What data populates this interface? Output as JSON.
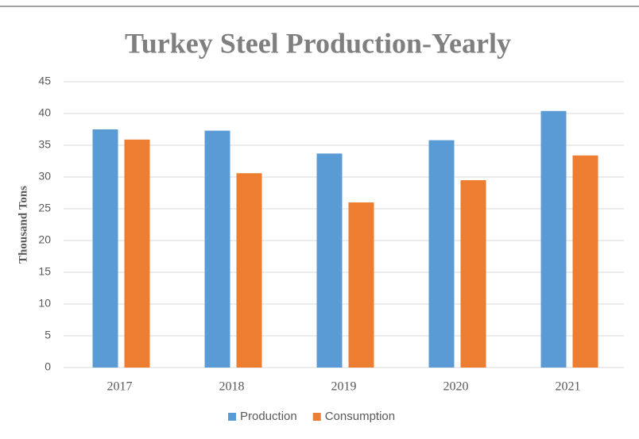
{
  "chart_data": {
    "type": "bar",
    "title": "Turkey Steel Production-Yearly",
    "y_label": "Thousand Tons",
    "categories": [
      "2017",
      "2018",
      "2019",
      "2020",
      "2021"
    ],
    "series": [
      {
        "name": "Production",
        "color": "#5b9bd5",
        "values": [
          37.5,
          37.3,
          33.7,
          35.8,
          40.4
        ]
      },
      {
        "name": "Consumption",
        "color": "#ed7d31",
        "values": [
          35.9,
          30.6,
          26.0,
          29.5,
          33.4
        ]
      }
    ],
    "ylim": [
      0,
      45
    ],
    "yticks": [
      0,
      5,
      10,
      15,
      20,
      25,
      30,
      35,
      40,
      45
    ],
    "grid": true,
    "legend": "bottom"
  }
}
